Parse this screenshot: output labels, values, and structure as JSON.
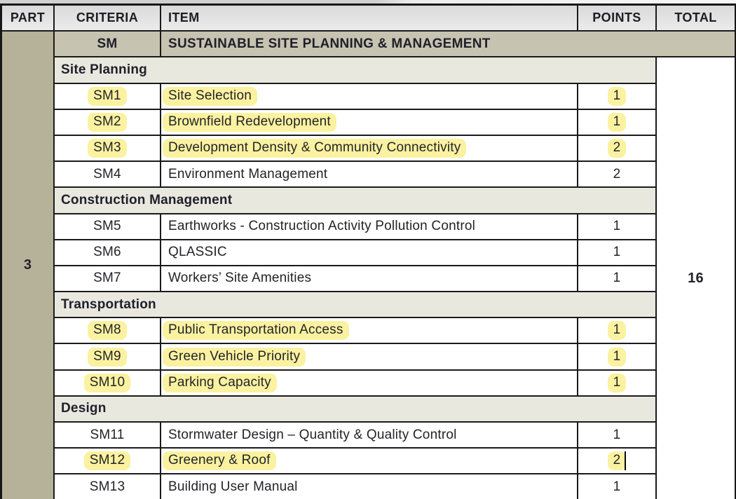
{
  "table": {
    "headers": {
      "part": "PART",
      "criteria": "CRITERIA",
      "item": "ITEM",
      "points": "POINTS",
      "total": "TOTAL"
    },
    "part_value": "3",
    "total_value": "16",
    "category_code": "SM",
    "category_title": "SUSTAINABLE SITE PLANNING & MANAGEMENT",
    "sections": [
      {
        "title": "Site Planning",
        "rows": [
          {
            "code": "SM1",
            "item": "Site Selection",
            "points": "1",
            "highlighted": true,
            "caret": false
          },
          {
            "code": "SM2",
            "item": "Brownfield Redevelopment",
            "points": "1",
            "highlighted": true,
            "caret": false
          },
          {
            "code": "SM3",
            "item": "Development Density & Community Connectivity",
            "points": "2",
            "highlighted": true,
            "caret": false
          },
          {
            "code": "SM4",
            "item": "Environment Management",
            "points": "2",
            "highlighted": false,
            "caret": false
          }
        ]
      },
      {
        "title": "Construction Management",
        "rows": [
          {
            "code": "SM5",
            "item": "Earthworks - Construction Activity Pollution Control",
            "points": "1",
            "highlighted": false,
            "caret": false
          },
          {
            "code": "SM6",
            "item": "QLASSIC",
            "points": "1",
            "highlighted": false,
            "caret": false
          },
          {
            "code": "SM7",
            "item": "Workers’ Site Amenities",
            "points": "1",
            "highlighted": false,
            "caret": false
          }
        ]
      },
      {
        "title": "Transportation",
        "rows": [
          {
            "code": "SM8",
            "item": "Public Transportation Access",
            "points": "1",
            "highlighted": true,
            "caret": false
          },
          {
            "code": "SM9",
            "item": "Green Vehicle Priority",
            "points": "1",
            "highlighted": true,
            "caret": false
          },
          {
            "code": "SM10",
            "item": "Parking Capacity",
            "points": "1",
            "highlighted": true,
            "caret": false
          }
        ]
      },
      {
        "title": "Design",
        "rows": [
          {
            "code": "SM11",
            "item": "Stormwater Design – Quantity & Quality Control",
            "points": "1",
            "highlighted": false,
            "caret": false
          },
          {
            "code": "SM12",
            "item": "Greenery & Roof",
            "points": "2",
            "highlighted": true,
            "caret": true
          },
          {
            "code": "SM13",
            "item": "Building User Manual",
            "points": "1",
            "highlighted": false,
            "caret": false
          }
        ]
      }
    ]
  },
  "colors": {
    "header_bg": "#e2e2e2",
    "category_row_bg": "#c7c3b1",
    "section_row_bg": "#e9e8df",
    "part_column_bg": "#b6b199",
    "highlight": "#faf2a0",
    "grid_line": "#1a1a1a",
    "text": "#232329"
  }
}
